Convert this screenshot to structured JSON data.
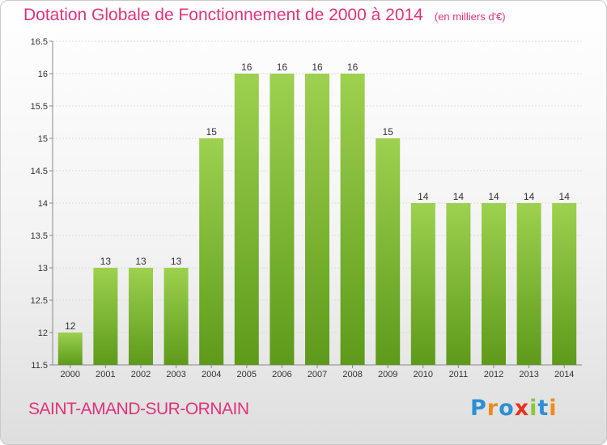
{
  "title": {
    "main": "Dotation Globale de Fonctionnement de 2000 à 2014",
    "unit": "(en milliers d'€)"
  },
  "commune": "SAINT-AMAND-SUR-ORNAIN",
  "logo": {
    "text": "Proxiti",
    "letter_colors": [
      "#2e8fd6",
      "#f08a1c",
      "#2e8fd6",
      "#e8331c",
      "#8cc63f",
      "#2e8fd6",
      "#f08a1c"
    ]
  },
  "colors": {
    "accent": "#e0327a",
    "bar_light": "#9dd14f",
    "bar_dark": "#5e9a1a"
  },
  "chart_data": {
    "type": "bar",
    "categories": [
      "2000",
      "2001",
      "2002",
      "2003",
      "2004",
      "2005",
      "2006",
      "2007",
      "2008",
      "2009",
      "2010",
      "2011",
      "2012",
      "2013",
      "2014"
    ],
    "values": [
      12,
      13,
      13,
      13,
      15,
      16,
      16,
      16,
      16,
      15,
      14,
      14,
      14,
      14,
      14
    ],
    "value_labels": [
      "12",
      "13",
      "13",
      "13",
      "15",
      "16",
      "16",
      "16",
      "16",
      "15",
      "14",
      "14",
      "14",
      "14",
      "14"
    ],
    "ylim": [
      11.5,
      16.5
    ],
    "yticks": [
      11.5,
      12,
      12.5,
      13,
      13.5,
      14,
      14.5,
      15,
      15.5,
      16,
      16.5
    ],
    "ytick_labels": [
      "11.5",
      "12",
      "12.5",
      "13",
      "13.5",
      "14",
      "14.5",
      "15",
      "15.5",
      "16",
      "16.5"
    ],
    "grid": true,
    "title": "Dotation Globale de Fonctionnement de 2000 à 2014",
    "xlabel": "",
    "ylabel": ""
  }
}
